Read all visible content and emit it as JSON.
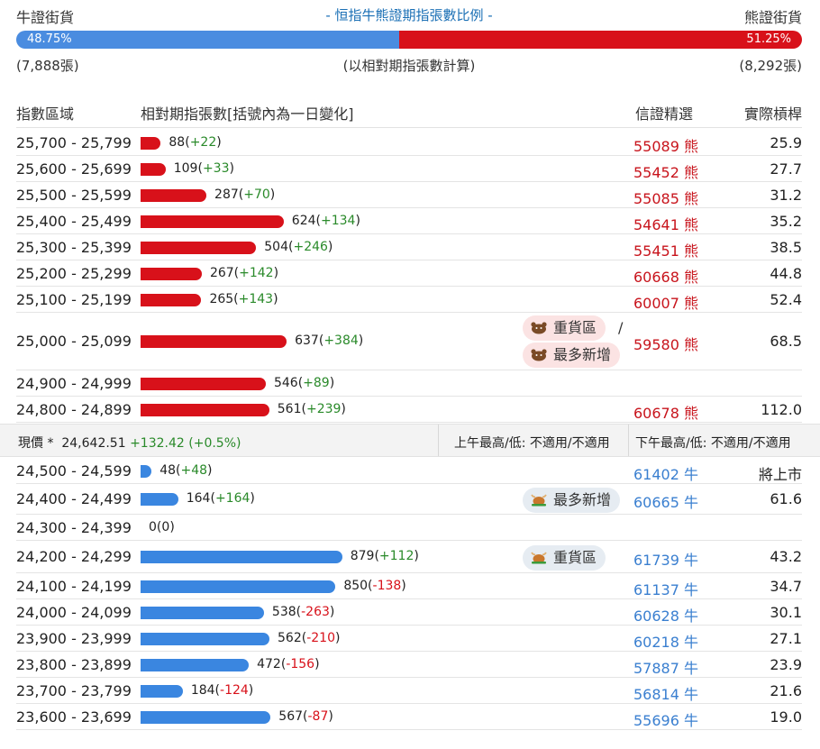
{
  "header": {
    "bull_title": "牛證街貨",
    "center_title": "- 恒指牛熊證期指張數比例 -",
    "bear_title": "熊證街貨"
  },
  "ratio": {
    "bull_pct_label": "48.75%",
    "bear_pct_label": "51.25%",
    "bull_fraction": 0.4875,
    "bull_color": "#4a8ce0",
    "bear_color": "#d8111a"
  },
  "counts": {
    "bull": "(7,888張)",
    "note": "(以相對期指張數計算)",
    "bear": "(8,292張)"
  },
  "columns": {
    "range": "指數區域",
    "contracts": "相對期指張數[括號內為一日變化]",
    "pick": "信證精選",
    "leverage": "實際槓桿"
  },
  "bear_rows": [
    {
      "range": "25,700 - 25,799",
      "value": "88",
      "change": "+22",
      "code": "55089",
      "kind": "熊",
      "leverage": "25.9"
    },
    {
      "range": "25,600 - 25,699",
      "value": "109",
      "change": "+33",
      "code": "55452",
      "kind": "熊",
      "leverage": "27.7"
    },
    {
      "range": "25,500 - 25,599",
      "value": "287",
      "change": "+70",
      "code": "55085",
      "kind": "熊",
      "leverage": "31.2"
    },
    {
      "range": "25,400 - 25,499",
      "value": "624",
      "change": "+134",
      "code": "54641",
      "kind": "熊",
      "leverage": "35.2"
    },
    {
      "range": "25,300 - 25,399",
      "value": "504",
      "change": "+246",
      "code": "55451",
      "kind": "熊",
      "leverage": "38.5"
    },
    {
      "range": "25,200 - 25,299",
      "value": "267",
      "change": "+142",
      "code": "60668",
      "kind": "熊",
      "leverage": "44.8"
    },
    {
      "range": "25,100 - 25,199",
      "value": "265",
      "change": "+143",
      "code": "60007",
      "kind": "熊",
      "leverage": "52.4"
    },
    {
      "range": "25,000 - 25,099",
      "value": "637",
      "change": "+384",
      "code": "59580",
      "kind": "熊",
      "leverage": "68.5"
    },
    {
      "range": "24,900 - 24,999",
      "value": "546",
      "change": "+89",
      "code": "",
      "kind": "",
      "leverage": ""
    },
    {
      "range": "24,800 - 24,899",
      "value": "561",
      "change": "+239",
      "code": "60678",
      "kind": "熊",
      "leverage": "112.0"
    }
  ],
  "bear_tags": {
    "heavy": "重貨區",
    "slash": "/",
    "most_new": "最多新增"
  },
  "spot": {
    "label": "現價 *",
    "price": "24,642.51",
    "change": "+132.42 (+0.5%)",
    "am": "上午最高/低: 不適用/不適用",
    "pm": "下午最高/低: 不適用/不適用"
  },
  "bull_rows": [
    {
      "range": "24,500 - 24,599",
      "value": "48",
      "change": "+48",
      "code": "61402",
      "kind": "牛",
      "leverage": "將上市"
    },
    {
      "range": "24,400 - 24,499",
      "value": "164",
      "change": "+164",
      "code": "60665",
      "kind": "牛",
      "leverage": "61.6"
    },
    {
      "range": "24,300 - 24,399",
      "value": "0",
      "change": "0",
      "code": "",
      "kind": "",
      "leverage": ""
    },
    {
      "range": "24,200 - 24,299",
      "value": "879",
      "change": "+112",
      "code": "61739",
      "kind": "牛",
      "leverage": "43.2"
    },
    {
      "range": "24,100 - 24,199",
      "value": "850",
      "change": "-138",
      "code": "61137",
      "kind": "牛",
      "leverage": "34.7"
    },
    {
      "range": "24,000 - 24,099",
      "value": "538",
      "change": "-263",
      "code": "60628",
      "kind": "牛",
      "leverage": "30.1"
    },
    {
      "range": "23,900 - 23,999",
      "value": "562",
      "change": "-210",
      "code": "60218",
      "kind": "牛",
      "leverage": "27.1"
    },
    {
      "range": "23,800 - 23,899",
      "value": "472",
      "change": "-156",
      "code": "57887",
      "kind": "牛",
      "leverage": "23.9"
    },
    {
      "range": "23,700 - 23,799",
      "value": "184",
      "change": "-124",
      "code": "56814",
      "kind": "牛",
      "leverage": "21.6"
    },
    {
      "range": "23,600 - 23,699",
      "value": "567",
      "change": "-87",
      "code": "55696",
      "kind": "牛",
      "leverage": "19.0"
    }
  ],
  "bull_tags": {
    "most_new": "最多新增",
    "heavy": "重貨區"
  }
}
